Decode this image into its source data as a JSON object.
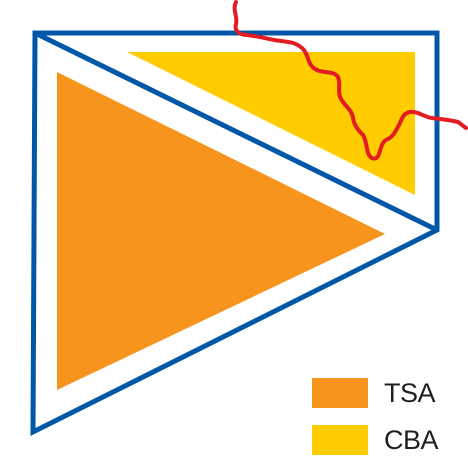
{
  "colors": {
    "boundary": "#0057a8",
    "tsa": "#f7941d",
    "cba": "#ffcc00",
    "river": "#e31b23",
    "legend_text": "#231f20"
  },
  "legend": {
    "items": [
      {
        "id": "tsa",
        "label": "TSA",
        "color": "#f7941d"
      },
      {
        "id": "cba",
        "label": "CBA",
        "color": "#ffcc00"
      }
    ]
  }
}
